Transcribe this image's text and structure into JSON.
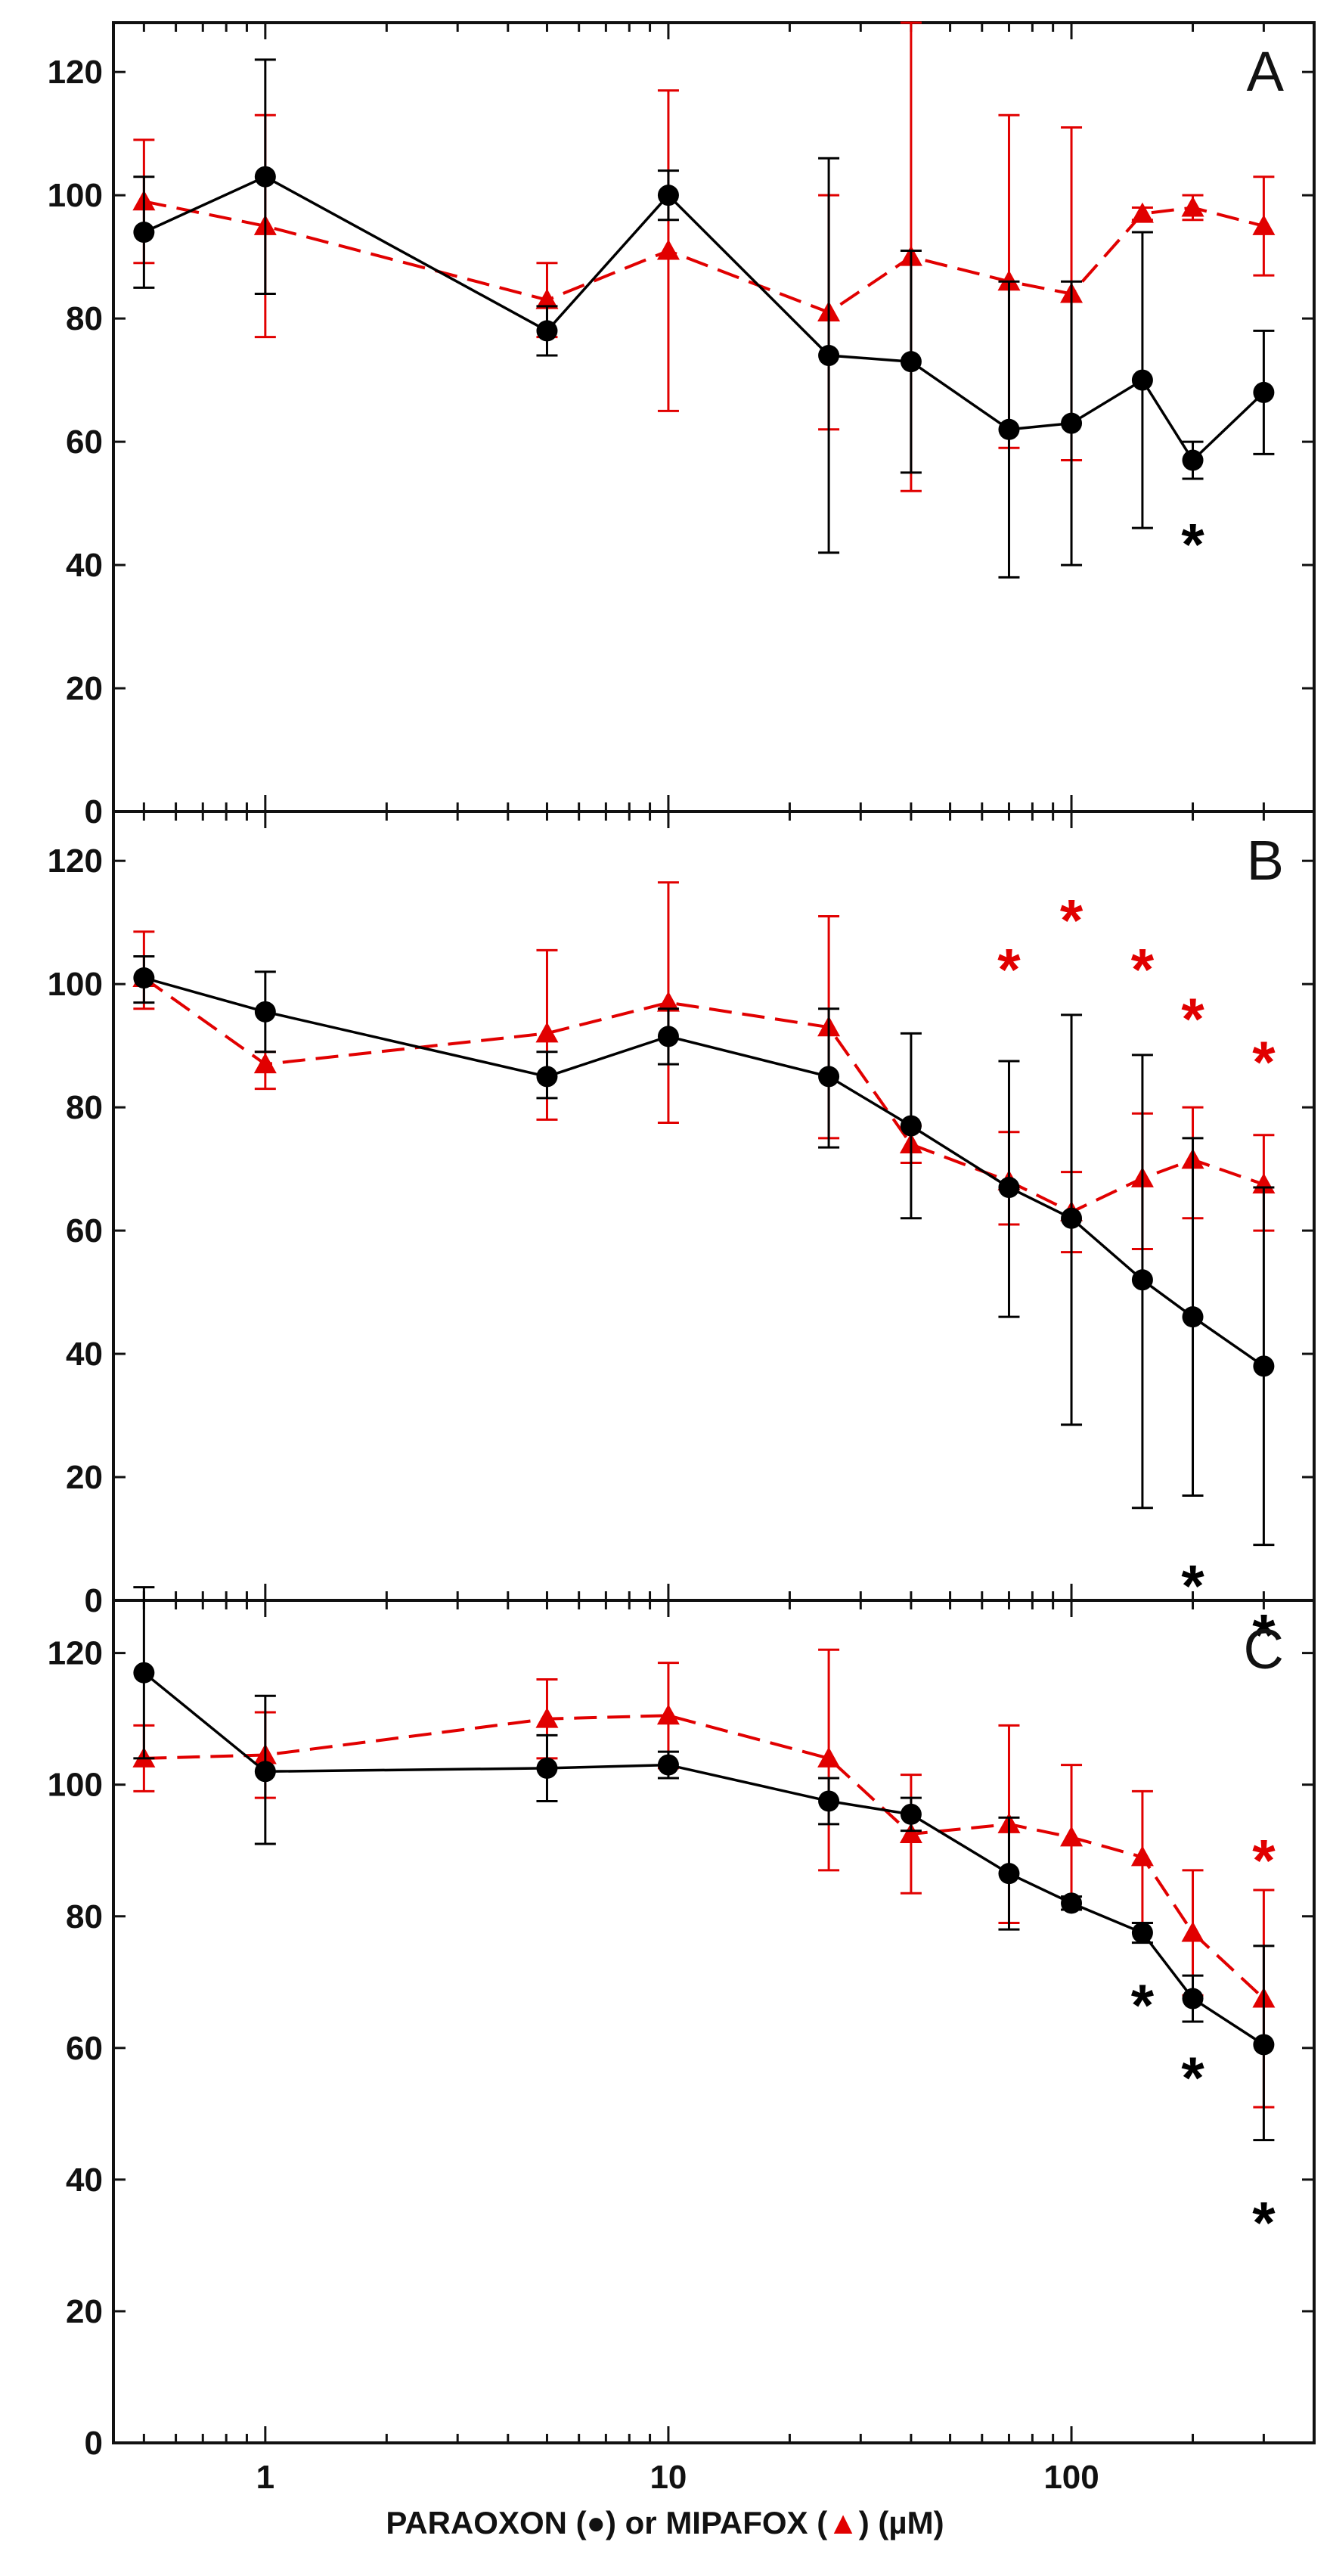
{
  "chart_data": {
    "type": "line",
    "x_scale": "log",
    "xlim": [
      0.42,
      400
    ],
    "x_ticks": [
      1,
      10,
      100
    ],
    "x_tick_labels": [
      "1",
      "10",
      "100"
    ],
    "xlabel_parts": {
      "paraoxon": "PARAOXON (",
      "circle_glyph": "●",
      "mid": ") or MIPAFOX (",
      "triangle_glyph": "▲",
      "end": ") (µM)"
    },
    "colors": {
      "paraoxon": "#000000",
      "mipafox": "#e10000"
    },
    "panels": [
      {
        "label": "A",
        "ylim": [
          0,
          128
        ],
        "y_ticks": [
          0,
          20,
          40,
          60,
          80,
          100,
          120
        ],
        "series": [
          {
            "name": "PARAOXON",
            "marker": "circle",
            "x": [
              0.5,
              1,
              5,
              10,
              25,
              40,
              70,
              100,
              150,
              200,
              300
            ],
            "y": [
              94,
              103,
              78,
              100,
              74,
              73,
              62,
              63,
              70,
              57,
              68
            ],
            "err_low": [
              85,
              84,
              74,
              96,
              42,
              55,
              38,
              40,
              46,
              54,
              58
            ],
            "err_high": [
              103,
              122,
              82,
              104,
              106,
              91,
              86,
              86,
              94,
              60,
              78
            ]
          },
          {
            "name": "MIPAFOX",
            "marker": "triangle",
            "x": [
              0.5,
              1,
              5,
              10,
              25,
              40,
              70,
              100,
              150,
              200,
              300
            ],
            "y": [
              99,
              95,
              83,
              91,
              81,
              90,
              86,
              84,
              97,
              98,
              95
            ],
            "err_low": [
              89,
              77,
              77,
              65,
              62,
              52,
              59,
              57,
              96,
              96,
              87
            ],
            "err_high": [
              109,
              113,
              89,
              117,
              100,
              128,
              113,
              111,
              98,
              100,
              103
            ]
          }
        ],
        "annotations": [
          {
            "text": "*",
            "x": 200,
            "y": 45,
            "series": "PARAOXON"
          }
        ]
      },
      {
        "label": "B",
        "ylim": [
          0,
          128
        ],
        "y_ticks": [
          0,
          20,
          40,
          60,
          80,
          100,
          120
        ],
        "series": [
          {
            "name": "PARAOXON",
            "marker": "circle",
            "x": [
              0.5,
              1,
              5,
              10,
              25,
              40,
              70,
              100,
              150,
              200,
              300
            ],
            "y": [
              101,
              95.5,
              85,
              91.5,
              85,
              77,
              67,
              62,
              52,
              46,
              38
            ],
            "err_low": [
              97,
              89,
              81.5,
              87,
              73.5,
              62,
              46,
              28.5,
              15,
              17,
              9
            ],
            "err_high": [
              104.5,
              102,
              89,
              96,
              96,
              92,
              87.5,
              95,
              88.5,
              75,
              67
            ]
          },
          {
            "name": "MIPAFOX",
            "marker": "triangle",
            "x": [
              0.5,
              1,
              5,
              10,
              25,
              40,
              70,
              100,
              150,
              200,
              300
            ],
            "y": [
              101,
              87,
              92,
              97,
              93,
              74,
              68,
              63,
              68.5,
              71.5,
              67.5
            ],
            "err_low": [
              96,
              83,
              78,
              77.5,
              75,
              71,
              61,
              56.5,
              57,
              62,
              60
            ],
            "err_high": [
              108.5,
              89,
              105.5,
              116.5,
              111,
              77,
              76,
              69.5,
              79,
              80,
              75.5
            ]
          }
        ],
        "annotations": [
          {
            "text": "*",
            "x": 70,
            "y": 104,
            "series": "MIPAFOX"
          },
          {
            "text": "*",
            "x": 100,
            "y": 112,
            "series": "MIPAFOX"
          },
          {
            "text": "*",
            "x": 150,
            "y": 104,
            "series": "MIPAFOX"
          },
          {
            "text": "*",
            "x": 200,
            "y": 96,
            "series": "MIPAFOX"
          },
          {
            "text": "*",
            "x": 300,
            "y": 89,
            "series": "MIPAFOX"
          },
          {
            "text": "*",
            "x": 200,
            "y": 4,
            "series": "PARAOXON"
          },
          {
            "text": "*",
            "x": 300,
            "y": -4,
            "series": "PARAOXON"
          }
        ]
      },
      {
        "label": "C",
        "ylim": [
          0,
          128
        ],
        "y_ticks": [
          0,
          20,
          40,
          60,
          80,
          100,
          120
        ],
        "series": [
          {
            "name": "PARAOXON",
            "marker": "circle",
            "x": [
              0.5,
              1,
              5,
              10,
              25,
              40,
              70,
              100,
              150,
              200,
              300
            ],
            "y": [
              117,
              102,
              102.5,
              103,
              97.5,
              95.5,
              86.5,
              82,
              77.5,
              67.5,
              60.5
            ],
            "err_low": [
              104,
              91,
              97.5,
              101,
              94,
              93,
              78,
              81,
              76,
              64,
              46
            ],
            "err_high": [
              130,
              113.5,
              107.5,
              105,
              101,
              98,
              95,
              83,
              79,
              71,
              75.5
            ]
          },
          {
            "name": "MIPAFOX",
            "marker": "triangle",
            "x": [
              0.5,
              1,
              5,
              10,
              25,
              40,
              70,
              100,
              150,
              200,
              300
            ],
            "y": [
              104,
              104.5,
              110,
              110.5,
              104,
              92.5,
              94,
              92,
              89,
              77.5,
              67.5
            ],
            "err_low": [
              99,
              98,
              104,
              102.5,
              87,
              83.5,
              79,
              81,
              79,
              68,
              51
            ],
            "err_high": [
              109,
              111,
              116,
              118.5,
              120.5,
              101.5,
              109,
              103,
              99,
              87,
              84
            ]
          }
        ],
        "annotations": [
          {
            "text": "*",
            "x": 150,
            "y": 68,
            "series": "PARAOXON"
          },
          {
            "text": "*",
            "x": 200,
            "y": 57,
            "series": "PARAOXON"
          },
          {
            "text": "*",
            "x": 300,
            "y": 35,
            "series": "PARAOXON"
          },
          {
            "text": "*",
            "x": 300,
            "y": 90,
            "series": "MIPAFOX"
          }
        ]
      }
    ]
  }
}
